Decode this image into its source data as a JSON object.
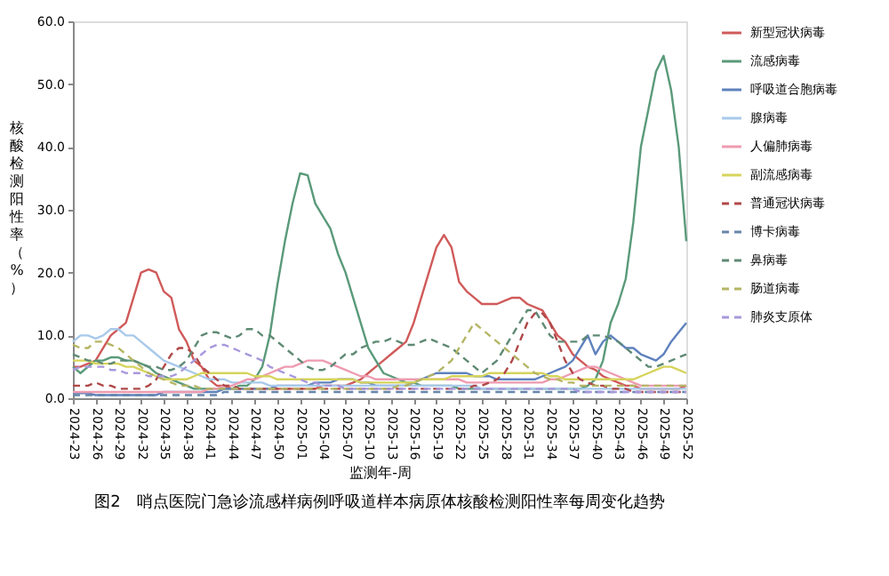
{
  "chart_data": {
    "type": "line",
    "xlabel": "监测年-周",
    "ylabel": "核酸检测阳性率（%）",
    "annotations": [
      "图2　哨点医院门急诊流感样病例呼吸道样本病原体核酸检测阳性率每周变化趋势"
    ],
    "categories": [
      "2024-23",
      null,
      null,
      "2024-26",
      null,
      null,
      "2024-29",
      null,
      null,
      "2024-32",
      null,
      null,
      "2024-35",
      null,
      null,
      "2024-38",
      null,
      null,
      "2024-41",
      null,
      null,
      "2024-44",
      null,
      null,
      "2024-47",
      null,
      null,
      "2024-50",
      null,
      null,
      "2025-01",
      null,
      null,
      "2025-04",
      null,
      null,
      "2025-07",
      null,
      null,
      "2025-10",
      null,
      null,
      "2025-13",
      null,
      null,
      "2025-16",
      null,
      null,
      "2025-19",
      null,
      null,
      "2025-22",
      null,
      null,
      "2025-25",
      null,
      null,
      "2025-28",
      null,
      null,
      "2025-31",
      null,
      null,
      "2025-34",
      null,
      null,
      "2025-37",
      null,
      null,
      "2025-40",
      null,
      null,
      "2025-43",
      null,
      null,
      "2025-46",
      null,
      null,
      "2025-49",
      null,
      null,
      "2025-52"
    ],
    "ylim": [
      0,
      60
    ],
    "yticks": [
      {
        "value": 0,
        "label": "0.0"
      },
      {
        "value": 10,
        "label": "10.0"
      },
      {
        "value": 20,
        "label": "20.0"
      },
      {
        "value": 30,
        "label": "30.0"
      },
      {
        "value": 40,
        "label": "40.0"
      },
      {
        "value": 50,
        "label": "50.0"
      },
      {
        "value": 60,
        "label": "60.0"
      }
    ],
    "grid": false,
    "legend": "right",
    "marker": "none",
    "series": [
      {
        "name": "新型冠状病毒",
        "color": "#d05a5a",
        "line_style": "solid",
        "values": [
          5,
          5,
          5.5,
          6,
          8,
          10,
          11,
          12,
          16,
          20,
          20.5,
          20,
          17,
          16,
          11,
          9,
          6,
          5,
          3,
          2,
          2,
          1.5,
          1.5,
          1.5,
          1.5,
          1.5,
          1.5,
          1.5,
          1.5,
          1.5,
          1.5,
          1.5,
          1.5,
          2,
          2,
          2,
          2,
          2.5,
          3,
          4,
          5,
          6,
          7,
          8,
          9,
          12,
          16,
          20,
          24,
          26,
          24,
          18.5,
          17,
          16,
          15,
          15,
          15,
          15.5,
          16,
          16,
          15,
          14.5,
          14,
          12,
          10,
          9,
          7,
          6,
          5,
          4.5,
          3.5,
          3,
          2.5,
          2,
          2,
          1.5,
          1.5,
          1.5,
          1.5,
          1.5,
          1.5,
          2
        ]
      },
      {
        "name": "流感病毒",
        "color": "#5a9a7a",
        "line_style": "solid",
        "values": [
          5,
          4,
          5,
          6,
          6,
          6.5,
          6.5,
          6,
          6,
          5.5,
          5,
          4,
          3.5,
          3,
          2.5,
          2,
          1.5,
          1.5,
          1.5,
          1.5,
          1.5,
          1.5,
          2,
          2,
          3,
          5,
          10,
          18,
          25,
          31,
          35.8,
          35.5,
          31,
          29,
          27,
          23,
          20,
          16,
          12,
          8,
          6,
          4,
          3.5,
          3,
          2.5,
          2.5,
          2,
          2,
          2,
          2,
          2,
          1.5,
          1.5,
          1.5,
          1.5,
          1.5,
          1.5,
          1.5,
          1.5,
          1.5,
          1.5,
          1.5,
          1.5,
          1.5,
          1.5,
          1.5,
          1.5,
          1.5,
          2,
          3,
          6,
          12,
          15,
          19,
          28,
          40,
          46,
          52,
          54.5,
          49,
          40,
          25
        ]
      },
      {
        "name": "呼吸道合胞病毒",
        "color": "#5f82bd",
        "line_style": "solid",
        "values": [
          0.8,
          0.8,
          0.8,
          0.5,
          0.5,
          0.5,
          0.5,
          0.5,
          0.5,
          0.5,
          0.5,
          0.5,
          1,
          1,
          1,
          1,
          1,
          1,
          1,
          1,
          1.5,
          1.5,
          1.5,
          1.5,
          1.5,
          1.5,
          1.5,
          2,
          2,
          2,
          2,
          2,
          2.5,
          2.5,
          2.5,
          3,
          3,
          3,
          2.5,
          2.5,
          2,
          2,
          2,
          2,
          2,
          2.5,
          3,
          3.5,
          4,
          4,
          4,
          4,
          4,
          3.5,
          3.5,
          3.5,
          3,
          3,
          3,
          3,
          3,
          3,
          3.5,
          4,
          4.5,
          5,
          6,
          8,
          10,
          7,
          9,
          10,
          9,
          8,
          8,
          7,
          6.5,
          6,
          7,
          9,
          10.5,
          12
        ]
      },
      {
        "name": "腺病毒",
        "color": "#a9c9ea",
        "line_style": "solid",
        "values": [
          9,
          10,
          10,
          9.5,
          10,
          11,
          11,
          10,
          10,
          9,
          8,
          7,
          6,
          5.5,
          5,
          4.5,
          4,
          3.5,
          3,
          3,
          3,
          2.5,
          2.5,
          2.5,
          2.5,
          2.5,
          2,
          2,
          2,
          2,
          2,
          2,
          2,
          2,
          2,
          2,
          2,
          2,
          2,
          2,
          2,
          2,
          2,
          2,
          2,
          2,
          2,
          2,
          2,
          2,
          2,
          2,
          2,
          2,
          1.5,
          1.5,
          1.5,
          1.5,
          1.5,
          1.5,
          1.5,
          1.5,
          1.5,
          1.5,
          1.5,
          1.5,
          1.5,
          1.5,
          1.5,
          1.5,
          1.5,
          1.5,
          1.5,
          1.5,
          1.5,
          1.5,
          1.5,
          1.5,
          1.5,
          1.5,
          1.5,
          1.5
        ]
      },
      {
        "name": "人偏肺病毒",
        "color": "#ee9bb0",
        "line_style": "solid",
        "values": [
          1,
          1,
          1,
          1,
          1,
          1,
          1,
          1,
          1,
          1,
          1,
          1,
          1,
          1,
          1,
          1,
          1,
          1,
          1.5,
          1.5,
          2,
          2,
          2.5,
          3,
          3,
          3.5,
          4,
          4.5,
          5,
          5,
          5.5,
          6,
          6,
          6,
          5.5,
          5,
          4.5,
          4,
          3.5,
          3.5,
          3,
          3,
          3,
          3,
          3,
          3,
          3,
          3,
          3,
          3,
          3,
          3,
          2.5,
          2.5,
          2.5,
          2.5,
          2.5,
          2.5,
          2.5,
          2.5,
          2.5,
          2.5,
          2.5,
          3,
          3,
          3.5,
          4,
          4.5,
          5,
          5,
          4.5,
          4,
          3.5,
          3,
          2.5,
          2,
          2,
          2,
          2,
          2,
          2,
          2
        ]
      },
      {
        "name": "副流感病毒",
        "color": "#d6d45c",
        "line_style": "solid",
        "values": [
          6,
          6,
          6,
          5.5,
          5.5,
          5.5,
          5.5,
          5,
          5,
          4.5,
          4,
          3.5,
          3,
          3,
          3,
          3,
          3.5,
          4,
          4,
          4,
          4,
          4,
          4,
          4,
          3.5,
          3.5,
          3.5,
          3,
          3,
          3,
          3,
          3,
          3,
          3,
          3,
          3,
          3,
          3,
          2.5,
          2.5,
          2.5,
          2.5,
          2.5,
          2.5,
          2.5,
          2.5,
          3,
          3,
          3,
          3,
          3.5,
          3.5,
          3.5,
          3.5,
          3.5,
          4,
          4,
          4,
          4,
          4,
          4,
          4,
          4,
          3.5,
          3.5,
          3,
          3,
          3,
          3,
          3,
          3,
          3,
          3,
          3,
          3,
          3.5,
          4,
          4.5,
          5,
          5,
          4.5,
          4
        ]
      },
      {
        "name": "普通冠状病毒",
        "color": "#b04848",
        "line_style": "dashed",
        "values": [
          2,
          2,
          2,
          2.5,
          2,
          2,
          1.5,
          1.5,
          1.5,
          1.5,
          2,
          3,
          5,
          7,
          8,
          8,
          7,
          5,
          4,
          3,
          2,
          2,
          1.5,
          1.5,
          1.5,
          1.5,
          1.5,
          1.5,
          1.5,
          1.5,
          1.5,
          1.5,
          1.5,
          1.5,
          1.5,
          1.5,
          1.5,
          1.5,
          1.5,
          1.5,
          1.5,
          1.5,
          1.5,
          1.5,
          1.5,
          1.5,
          1.5,
          1.5,
          1.5,
          1.5,
          1.5,
          1.5,
          1.5,
          2,
          2,
          2.5,
          3,
          4,
          6,
          9,
          12,
          13.5,
          13.5,
          12,
          9,
          6,
          4,
          3,
          2.5,
          2,
          2,
          1.5,
          1.5,
          1.5,
          1,
          1,
          1,
          1,
          1,
          1,
          1,
          1
        ]
      },
      {
        "name": "博卡病毒",
        "color": "#6685aa",
        "line_style": "dashed",
        "values": [
          0.5,
          0.5,
          0.5,
          0.5,
          0.5,
          0.5,
          0.5,
          0.5,
          0.5,
          0.5,
          0.5,
          0.5,
          0.5,
          0.5,
          0.5,
          0.5,
          0.5,
          0.5,
          0.5,
          0.5,
          1,
          1,
          1,
          1,
          1,
          1,
          1,
          1,
          1,
          1,
          1,
          1,
          1,
          1,
          1,
          1,
          1,
          1,
          1,
          1,
          1,
          1,
          1,
          1,
          1,
          1,
          1,
          1,
          1,
          1,
          1,
          1,
          1,
          1,
          1,
          1,
          1,
          1,
          1,
          1,
          1,
          1,
          1,
          1,
          1,
          1,
          1,
          1,
          1,
          1,
          1,
          1,
          1,
          1,
          1,
          1,
          1,
          1,
          1,
          1,
          1,
          1
        ]
      },
      {
        "name": "鼻病毒",
        "color": "#5f8a74",
        "line_style": "dashed",
        "values": [
          7,
          6.5,
          6,
          6,
          5.5,
          5.5,
          6,
          6,
          6,
          5.5,
          5,
          5,
          4.5,
          4.5,
          5,
          6,
          8,
          10,
          10.5,
          10.5,
          10,
          9.5,
          10,
          11,
          11,
          10,
          10,
          9,
          8,
          7,
          6,
          5,
          4.5,
          4.5,
          5,
          6,
          7,
          7,
          8,
          8.5,
          9,
          9,
          9.5,
          9,
          8.5,
          8.5,
          9,
          9.5,
          9,
          8.5,
          8,
          7,
          6,
          5,
          4,
          5,
          6,
          8,
          10,
          12,
          14,
          14,
          12,
          10,
          9,
          9,
          9,
          9,
          10,
          10,
          10,
          9.5,
          9,
          8,
          7,
          6,
          5,
          5,
          5.5,
          6,
          6.5,
          7
        ]
      },
      {
        "name": "肠道病毒",
        "color": "#b5b565",
        "line_style": "dashed",
        "values": [
          8.5,
          8,
          8,
          9,
          9,
          8.5,
          8,
          7,
          6,
          5,
          4,
          3.5,
          3,
          2.5,
          2,
          2,
          2,
          1.5,
          1.5,
          1.5,
          1.5,
          1.5,
          1.5,
          1.5,
          1.5,
          1.5,
          1.5,
          1.5,
          1.5,
          1.5,
          1.5,
          1.5,
          1.5,
          1.5,
          1.5,
          1.5,
          1.5,
          1.5,
          1.5,
          1.5,
          1.5,
          1.5,
          1.5,
          2,
          2,
          2.5,
          3,
          3.5,
          4,
          5,
          6,
          8,
          10,
          12,
          11,
          10,
          9,
          8,
          7,
          6,
          5,
          4,
          3.5,
          3,
          3,
          2.5,
          2.5,
          2,
          2,
          2,
          2,
          2,
          2,
          2,
          2,
          2,
          2,
          2,
          2,
          2,
          2,
          2
        ]
      },
      {
        "name": "肺炎支原体",
        "color": "#a898dc",
        "line_style": "dashed",
        "values": [
          4.5,
          5,
          5,
          5,
          5,
          4.5,
          4.5,
          4,
          4,
          4,
          3.5,
          3.5,
          3.5,
          3.5,
          4,
          5,
          6,
          7,
          8,
          8.5,
          8.5,
          8,
          7.5,
          7,
          6.5,
          6,
          5,
          4.5,
          4,
          3.5,
          3,
          2.5,
          2.5,
          2,
          2,
          2,
          1.5,
          1.5,
          1.5,
          1.5,
          1.5,
          1.5,
          1.5,
          1.5,
          1.5,
          1.5,
          1.5,
          1.5,
          1.5,
          1.5,
          1.5,
          1.5,
          1.5,
          1.5,
          1.5,
          1.5,
          1.5,
          1.5,
          1.5,
          1.5,
          1.5,
          1.5,
          1.5,
          1.5,
          1.5,
          1.5,
          1.5,
          1,
          1,
          1,
          1,
          1,
          1,
          1,
          1,
          1,
          1,
          1,
          1,
          1,
          1,
          1
        ]
      }
    ]
  }
}
